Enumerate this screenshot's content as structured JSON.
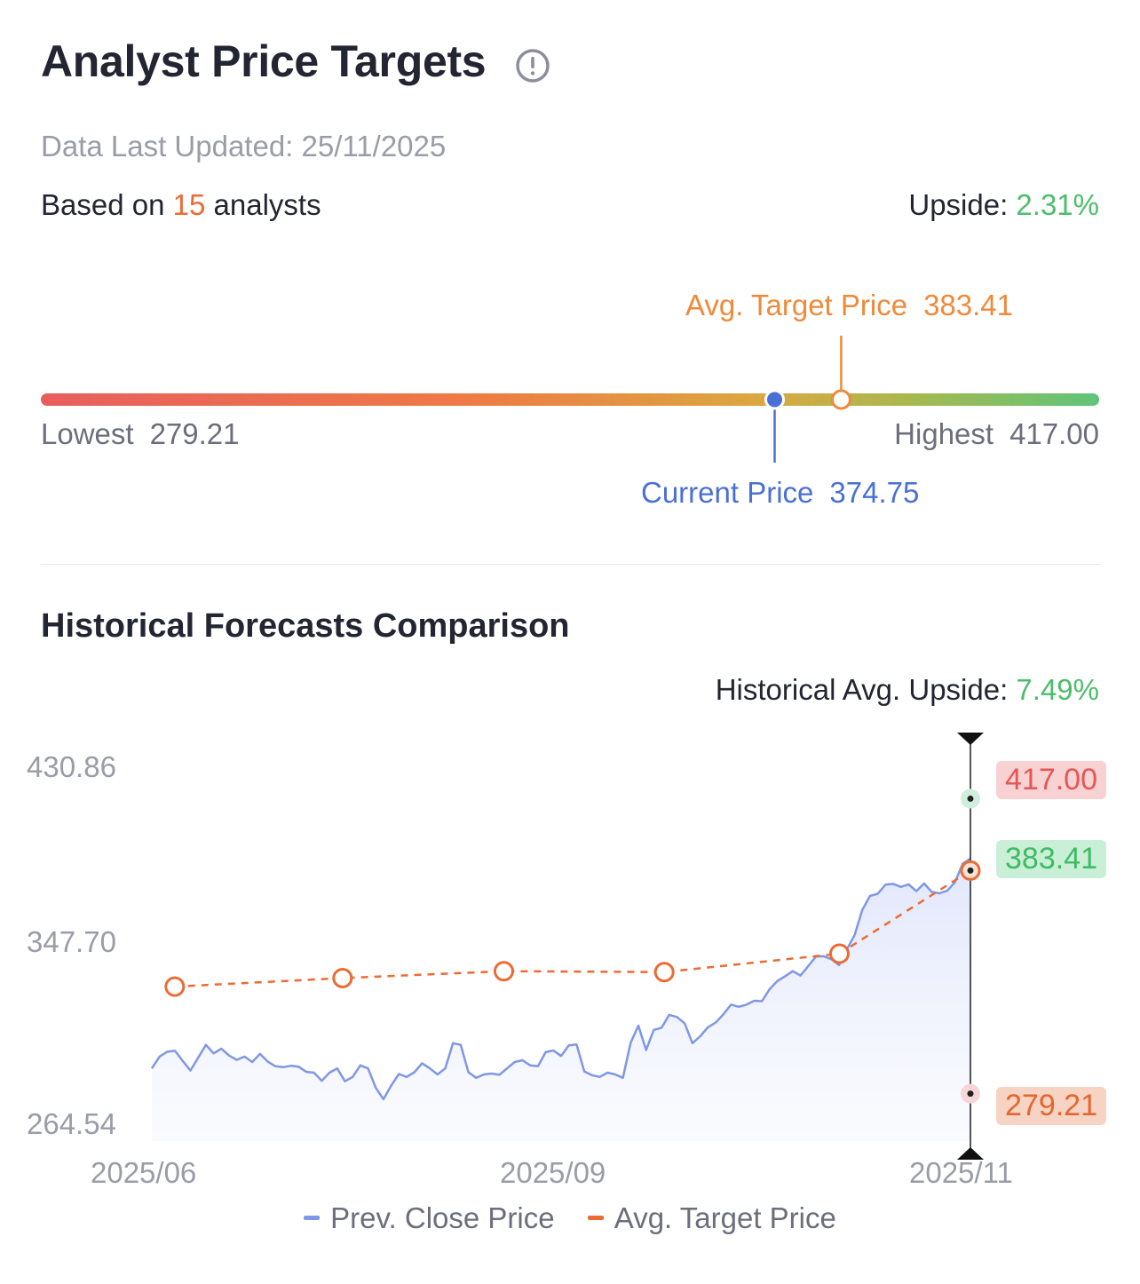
{
  "header": {
    "title": "Analyst Price Targets",
    "updated": "Data Last Updated: 25/11/2025",
    "based_prefix": "Based on ",
    "analyst_count": "15",
    "based_suffix": " analysts",
    "upside_label": "Upside: ",
    "upside_value": "2.31%"
  },
  "range": {
    "lowest_label": "Lowest",
    "lowest_value": "279.21",
    "highest_label": "Highest",
    "highest_value": "417.00",
    "avg_label": "Avg. Target Price",
    "avg_value": "383.41",
    "current_label": "Current Price",
    "current_value": "374.75",
    "min": 279.21,
    "max": 417.0,
    "avg": 383.41,
    "current": 374.75
  },
  "history": {
    "title": "Historical Forecasts Comparison",
    "upside_label": "Historical Avg. Upside: ",
    "upside_value": "7.49%",
    "badge_high": "417.00",
    "badge_avg": "383.41",
    "badge_low": "279.21",
    "legend_close": "Prev. Close Price",
    "legend_avg": "Avg. Target Price"
  },
  "colors": {
    "close_line": "#7f97e6",
    "avg_line": "#ec6b33",
    "high": "#e55757",
    "avg_badge": "#3fbb64",
    "low": "#e4662e"
  },
  "chart_data": {
    "type": "line",
    "ylim": [
      264.54,
      430.86
    ],
    "y_ticks": [
      "430.86",
      "347.70",
      "264.54"
    ],
    "y_tick_values": [
      430.86,
      347.7,
      264.54
    ],
    "x_ticks": [
      "2025/06",
      "2025/09",
      "2025/11"
    ],
    "x_tick_positions": [
      0,
      0.5,
      1
    ],
    "series": [
      {
        "name": "Prev. Close Price",
        "style": "area",
        "values": [
          291.0,
          296.5,
          298.8,
          299.2,
          294.5,
          290.0,
          296.0,
          302.0,
          298.0,
          300.2,
          297.0,
          295.0,
          296.5,
          294.0,
          297.8,
          294.2,
          292.0,
          291.6,
          292.2,
          291.8,
          289.4,
          289.0,
          285.2,
          289.0,
          291.0,
          285.0,
          287.0,
          292.4,
          291.0,
          282.0,
          276.6,
          283.0,
          288.4,
          287.0,
          289.2,
          293.4,
          291.0,
          288.2,
          291.0,
          302.8,
          302.0,
          289.2,
          286.6,
          288.2,
          288.6,
          288.0,
          291.0,
          294.0,
          294.8,
          292.4,
          292.0,
          298.6,
          299.4,
          296.8,
          301.8,
          302.2,
          289.6,
          287.8,
          287.0,
          289.0,
          288.2,
          286.6,
          303.0,
          311.0,
          299.6,
          309.0,
          310.0,
          316.0,
          315.0,
          312.0,
          302.8,
          306.0,
          310.2,
          312.4,
          316.2,
          320.8,
          319.8,
          320.8,
          322.6,
          322.4,
          328.0,
          331.8,
          334.0,
          336.4,
          334.4,
          338.8,
          343.2,
          343.4,
          342.0,
          339.2,
          346.6,
          353.2,
          365.0,
          371.6,
          372.6,
          376.8,
          377.2,
          375.8,
          377.0,
          373.8,
          377.4,
          373.4,
          372.8,
          374.0,
          378.0,
          386.6,
          389.0
        ]
      },
      {
        "name": "Avg. Target Price",
        "style": "dashed-markers",
        "x_positions": [
          0.028,
          0.233,
          0.43,
          0.626,
          0.84,
          1.0
        ],
        "values": [
          329.2,
          333.2,
          336.4,
          336.0,
          344.6,
          383.41
        ]
      }
    ],
    "markers_at_latest": {
      "highest": 417.0,
      "average": 383.41,
      "lowest": 279.21
    }
  }
}
